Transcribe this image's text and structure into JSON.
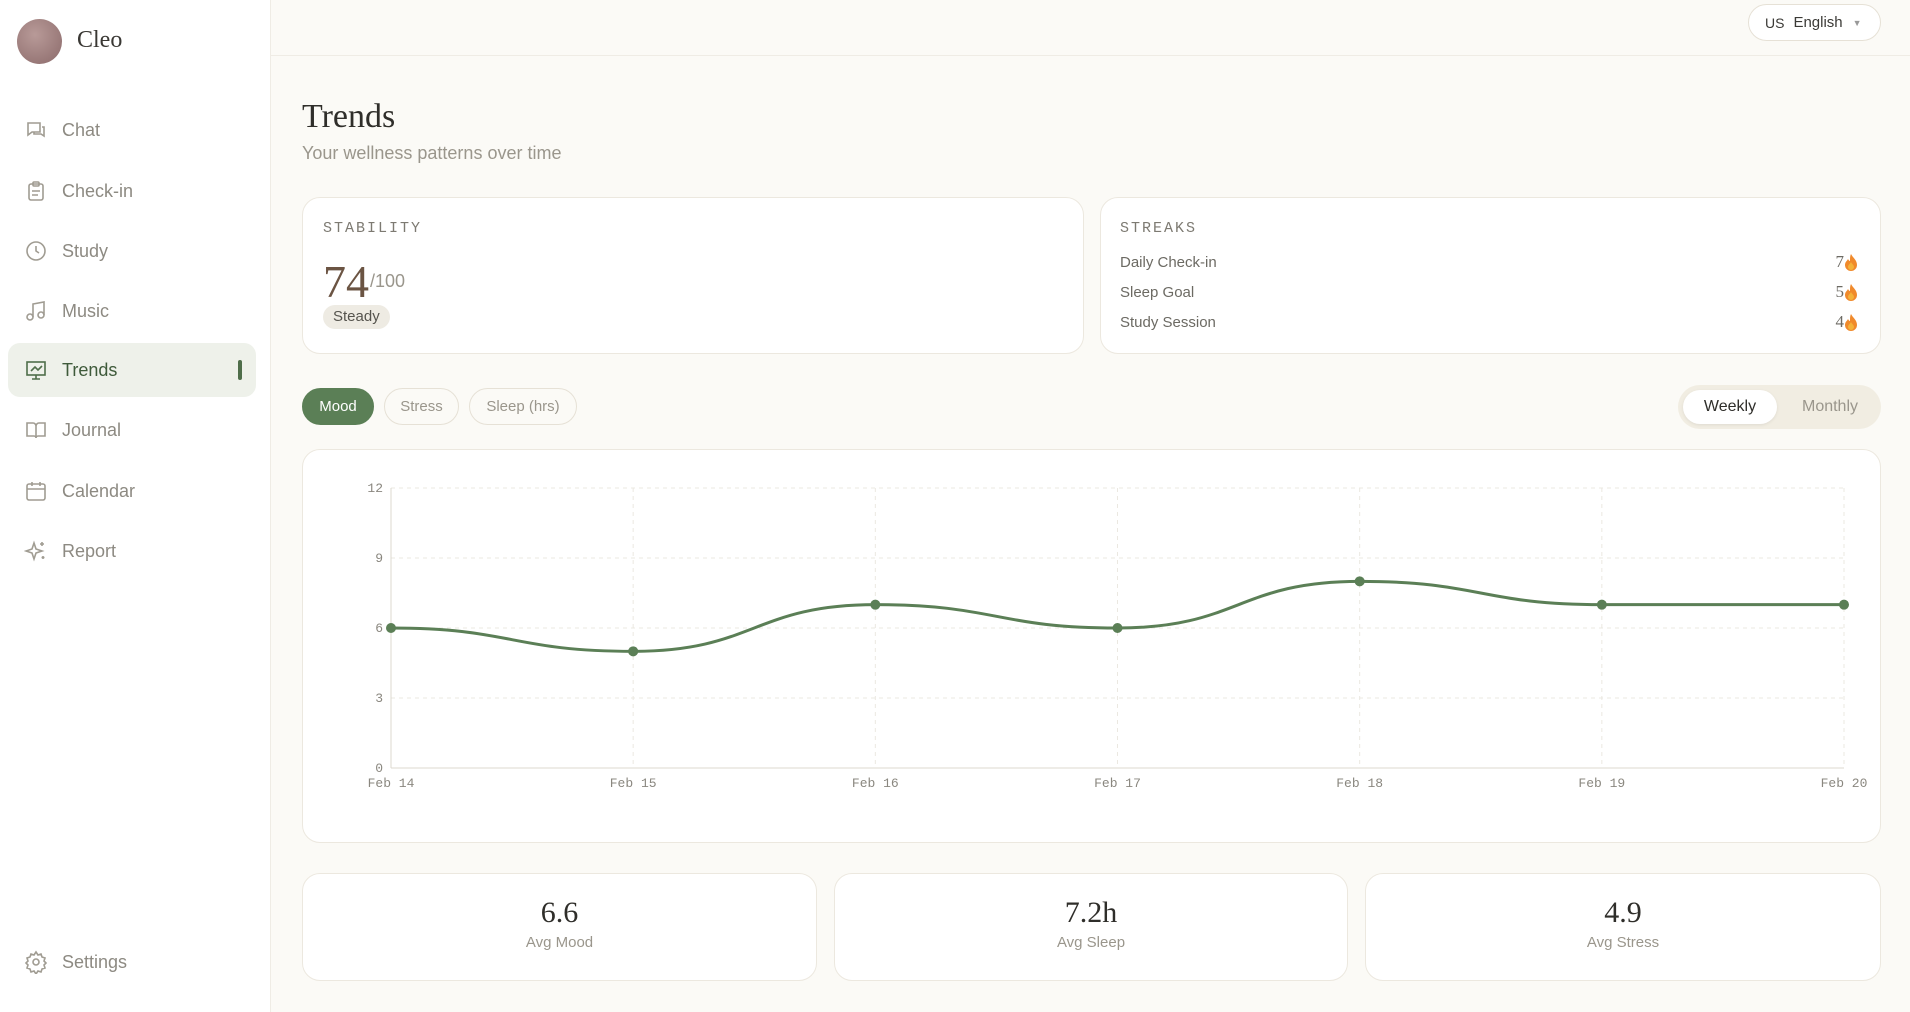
{
  "app": {
    "name": "Cleo"
  },
  "nav": [
    {
      "label": "Chat"
    },
    {
      "label": "Check-in"
    },
    {
      "label": "Study"
    },
    {
      "label": "Music"
    },
    {
      "label": "Trends"
    },
    {
      "label": "Journal"
    },
    {
      "label": "Calendar"
    },
    {
      "label": "Report"
    }
  ],
  "settings": {
    "label": "Settings"
  },
  "language": {
    "flag": "US",
    "label": "English"
  },
  "header": {
    "title": "Trends",
    "subtitle": "Your wellness patterns over time"
  },
  "stability": {
    "title": "STABILITY",
    "score": 74,
    "scale": "/100",
    "status": "Steady"
  },
  "streaks": {
    "title": "STREAKS",
    "items": [
      {
        "label": "Daily Check-in",
        "value": 7
      },
      {
        "label": "Sleep Goal",
        "value": 5
      },
      {
        "label": "Study Session",
        "value": 4
      }
    ]
  },
  "metric_tabs": [
    "Mood",
    "Stress",
    "Sleep (hrs)"
  ],
  "period_tabs": [
    "Weekly",
    "Monthly"
  ],
  "chart_data": {
    "type": "line",
    "categories": [
      "Feb 14",
      "Feb 15",
      "Feb 16",
      "Feb 17",
      "Feb 18",
      "Feb 19",
      "Feb 20"
    ],
    "series": [
      {
        "name": "Mood",
        "color": "#5b7f56",
        "values": [
          6,
          5,
          7,
          6,
          8,
          7,
          7
        ]
      }
    ],
    "ylim": [
      0,
      12
    ],
    "yticks": [
      0,
      3,
      6,
      9,
      12
    ],
    "grid": true
  },
  "summary": [
    {
      "value": "6.6",
      "label": "Avg Mood"
    },
    {
      "value": "7.2h",
      "label": "Avg Sleep"
    },
    {
      "value": "4.9",
      "label": "Avg Stress"
    }
  ]
}
